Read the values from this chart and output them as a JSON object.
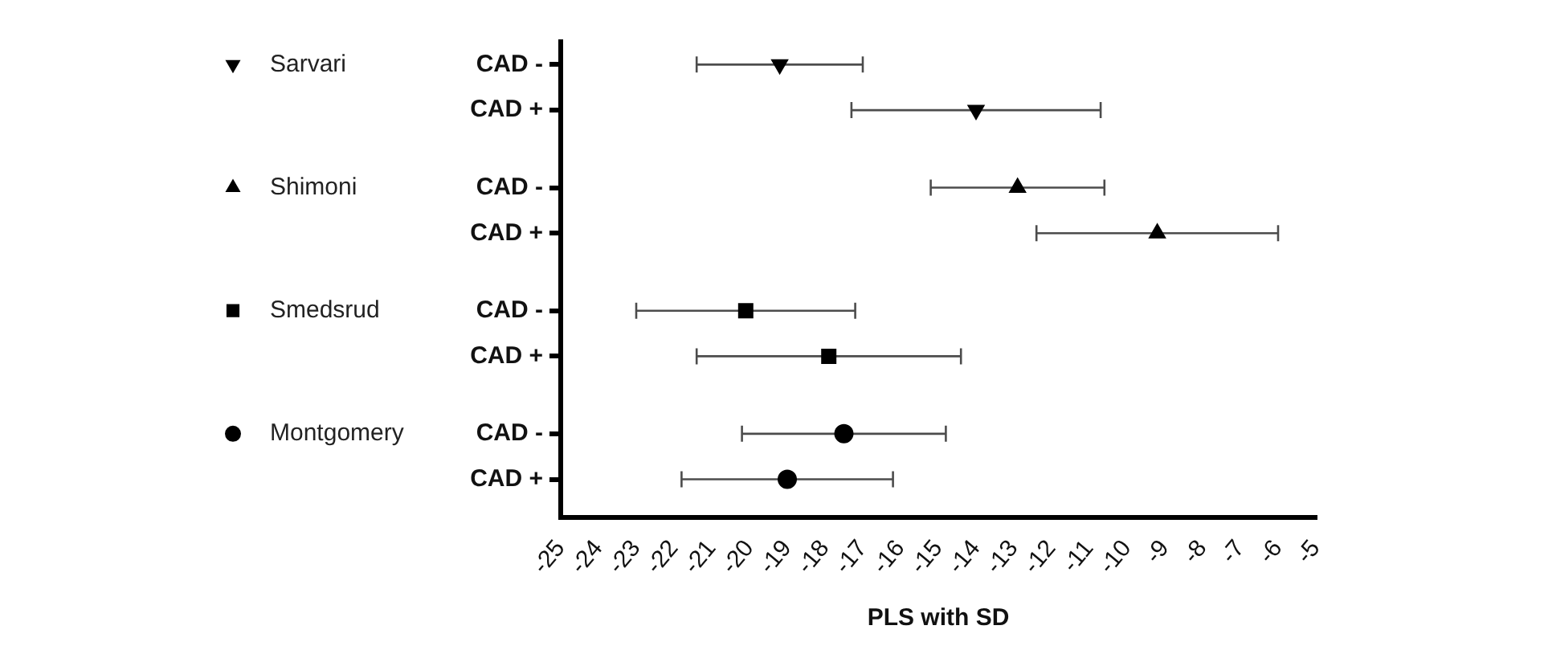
{
  "chart_data": {
    "type": "scatter",
    "orientation": "horizontal",
    "xlabel": "PLS with SD",
    "categories": [
      "CAD -",
      "CAD +",
      "CAD -",
      "CAD +",
      "CAD -",
      "CAD +",
      "CAD -",
      "CAD +"
    ],
    "series": [
      {
        "name": "Sarvari",
        "color": "#000000",
        "marker": "triangle-down",
        "values": [
          -19.2,
          -14.0,
          null,
          null,
          null,
          null,
          null,
          null
        ],
        "errors": [
          2.2,
          3.3,
          null,
          null,
          null,
          null,
          null,
          null
        ]
      },
      {
        "name": "Shimoni",
        "color": "#000000",
        "marker": "triangle",
        "values": [
          null,
          null,
          -12.9,
          -9.2,
          null,
          null,
          null,
          null
        ],
        "errors": [
          null,
          null,
          2.3,
          3.2,
          null,
          null,
          null,
          null
        ]
      },
      {
        "name": "Smedsrud",
        "color": "#000000",
        "marker": "square",
        "values": [
          null,
          null,
          null,
          null,
          -20.1,
          -17.9,
          null,
          null
        ],
        "errors": [
          null,
          null,
          null,
          null,
          2.9,
          3.5,
          null,
          null
        ]
      },
      {
        "name": "Montgomery",
        "color": "#000000",
        "marker": "circle",
        "values": [
          null,
          null,
          null,
          null,
          null,
          null,
          -17.5,
          -19.0
        ],
        "errors": [
          null,
          null,
          null,
          null,
          null,
          null,
          2.7,
          2.8
        ]
      }
    ],
    "xlim": [
      -25,
      -5
    ],
    "xticks": [
      -25,
      -24,
      -23,
      -22,
      -21,
      -20,
      -19,
      -18,
      -17,
      -16,
      -15,
      -14,
      -13,
      -12,
      -11,
      -10,
      -9,
      -8,
      -7,
      -6,
      -5
    ],
    "grid": false,
    "legend": "left"
  }
}
